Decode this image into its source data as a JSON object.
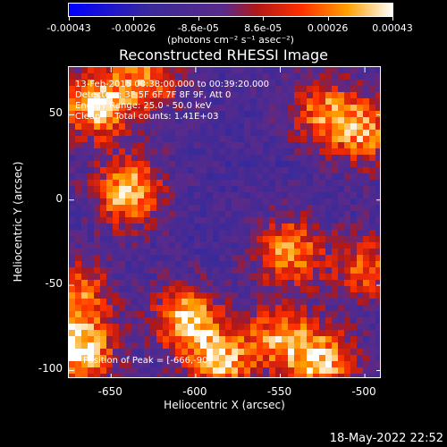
{
  "colorbar": {
    "tick_labels": [
      "-0.00043",
      "-0.00026",
      "-8.6e-05",
      "8.6e-05",
      "0.00026",
      "0.00043"
    ],
    "unit": "(photons cm⁻² s⁻¹ asec⁻²)",
    "colors": [
      "#0000ff",
      "#3a2a9a",
      "#5a2a8a",
      "#b01818",
      "#ff3000",
      "#ffa000",
      "#ffffff"
    ]
  },
  "annotations": {
    "time": "13-Feb-2015 00:38:00.000 to 00:39:20.000",
    "detectors": "Detectors: 3F 5F 6F 7F 8F 9F, Att 0",
    "energy": "Energy Range: 25.0 - 50.0 keV",
    "clean": "Clean     Total counts: 1.41E+03",
    "peak": "Position of Peak = [-666,-90]"
  },
  "footer": {
    "timestamp": "18-May-2022 22:52"
  },
  "chart_data": {
    "type": "heatmap",
    "title": "Reconstructed RHESSI Image",
    "xlabel": "Heliocentric X (arcsec)",
    "ylabel": "Heliocentric Y (arcsec)",
    "x_ticks": [
      -650,
      -600,
      -550,
      -500
    ],
    "y_ticks": [
      50,
      0,
      -50,
      -100
    ],
    "xlim": [
      -675,
      -490
    ],
    "ylim": [
      -105,
      78
    ],
    "zlim": [
      -0.00043,
      0.00043
    ],
    "peak": [
      -666,
      -90
    ],
    "emission_regions": [
      {
        "x": -660,
        "y": 55,
        "intensity": 0.0004
      },
      {
        "x": -630,
        "y": 70,
        "intensity": 0.0003
      },
      {
        "x": -640,
        "y": 5,
        "intensity": 0.0004
      },
      {
        "x": -668,
        "y": -88,
        "intensity": 0.00043
      },
      {
        "x": -605,
        "y": -70,
        "intensity": 0.00038
      },
      {
        "x": -585,
        "y": -95,
        "intensity": 0.00034
      },
      {
        "x": -525,
        "y": -95,
        "intensity": 0.00036
      },
      {
        "x": -550,
        "y": -80,
        "intensity": 0.00028
      },
      {
        "x": -545,
        "y": -30,
        "intensity": 0.00032
      },
      {
        "x": -500,
        "y": 40,
        "intensity": 0.0003
      },
      {
        "x": -525,
        "y": 52,
        "intensity": 0.00025
      },
      {
        "x": -670,
        "y": -55,
        "intensity": 0.00026
      },
      {
        "x": -500,
        "y": -40,
        "intensity": 0.00022
      }
    ]
  }
}
